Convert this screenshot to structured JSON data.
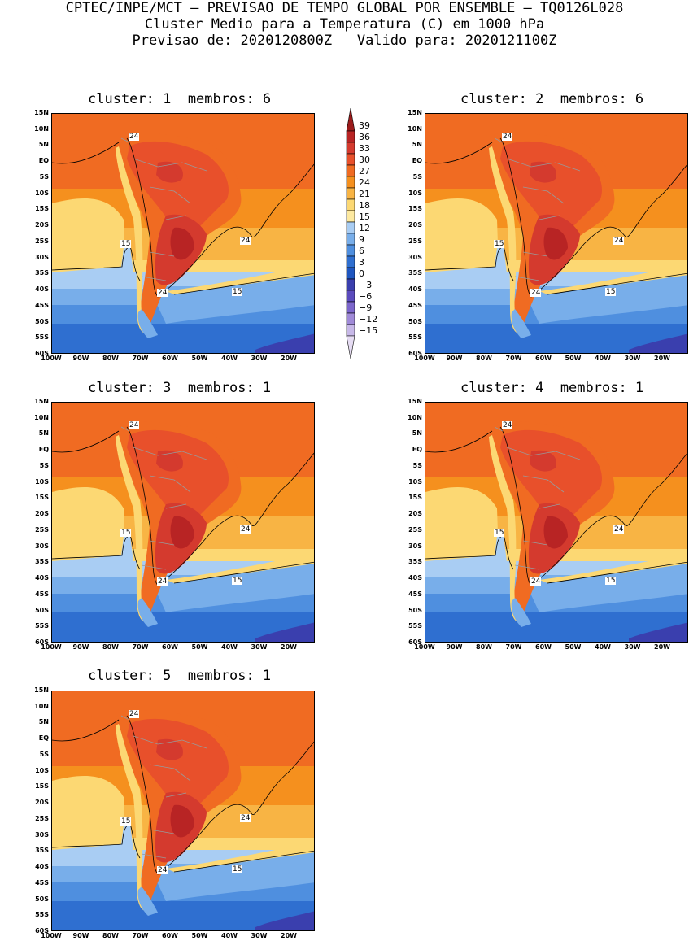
{
  "header": {
    "line1": "CPTEC/INPE/MCT – PREVISAO DE TEMPO GLOBAL POR ENSEMBLE – TQ0126L028",
    "line2": "Cluster Medio para a Temperatura (C) em 1000 hPa",
    "line3": "Previsao de: 2020120800Z   Valido para: 2020121100Z"
  },
  "panels": [
    {
      "title": "cluster: 1  membros: 6",
      "labels": [
        "24",
        "15",
        "24",
        "24",
        "15"
      ]
    },
    {
      "title": "cluster: 2  membros: 6",
      "labels": [
        "24",
        "15",
        "24",
        "24",
        "15"
      ]
    },
    {
      "title": "cluster: 3  membros: 1",
      "labels": [
        "24",
        "15",
        "24",
        "24",
        "15"
      ]
    },
    {
      "title": "cluster: 4  membros: 1",
      "labels": [
        "24",
        "15",
        "24",
        "24",
        "15"
      ]
    },
    {
      "title": "cluster: 5  membros: 1",
      "labels": [
        "24",
        "15",
        "24",
        "24",
        "15"
      ]
    }
  ],
  "axes": {
    "lat_ticks": [
      "15N",
      "10N",
      "5N",
      "EQ",
      "5S",
      "10S",
      "15S",
      "20S",
      "25S",
      "30S",
      "35S",
      "40S",
      "45S",
      "50S",
      "55S",
      "60S"
    ],
    "lon_ticks": [
      "100W",
      "90W",
      "80W",
      "70W",
      "60W",
      "50W",
      "40W",
      "30W",
      "20W"
    ]
  },
  "colorbar": {
    "labels": [
      "39",
      "36",
      "33",
      "30",
      "27",
      "24",
      "21",
      "18",
      "15",
      "12",
      "9",
      "6",
      "3",
      "0",
      "−3",
      "−6",
      "−9",
      "−12",
      "−15"
    ],
    "colors": [
      "#9b1b1b",
      "#b82424",
      "#d43a2e",
      "#e8502b",
      "#f06b22",
      "#f5901e",
      "#f8b444",
      "#fcd873",
      "#fde9a0",
      "#a9cdf3",
      "#78aeea",
      "#4f8fdf",
      "#2f6fd0",
      "#1f56c0",
      "#3a3fae",
      "#5b4bbd",
      "#7c66cc",
      "#a08ad8",
      "#c7b8e8",
      "#e6dcf3"
    ]
  }
}
